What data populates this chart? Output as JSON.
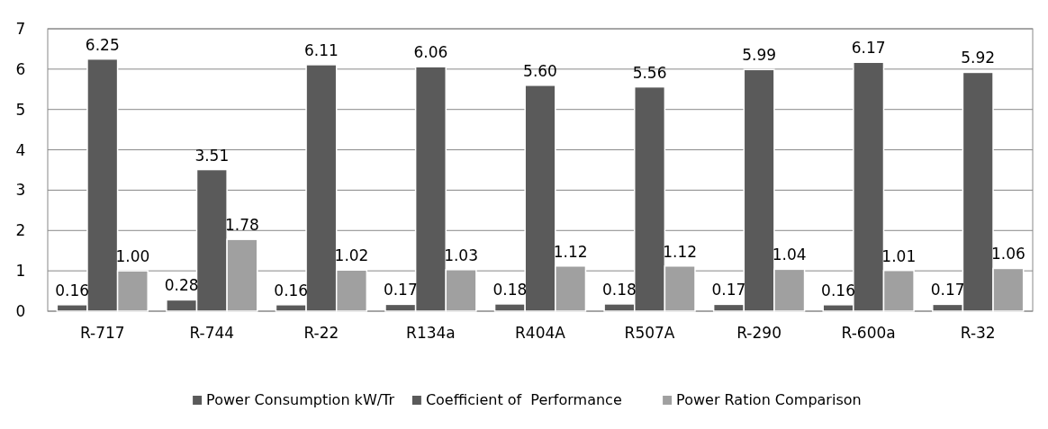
{
  "chart_data": {
    "type": "bar",
    "categories": [
      "R-717",
      "R-744",
      "R-22",
      "R134a",
      "R404A",
      "R507A",
      "R-290",
      "R-600a",
      "R-32"
    ],
    "series": [
      {
        "name": "Power Consumption kW/Tr",
        "color": "#5a5a5a",
        "values": [
          0.16,
          0.28,
          0.16,
          0.17,
          0.18,
          0.18,
          0.17,
          0.16,
          0.17
        ]
      },
      {
        "name": "Coefficient of  Performance",
        "color": "#5a5a5a",
        "values": [
          6.25,
          3.51,
          6.11,
          6.06,
          5.6,
          5.56,
          5.99,
          6.17,
          5.92
        ]
      },
      {
        "name": "Power Ration Comparison",
        "color": "#a0a0a0",
        "values": [
          1.0,
          1.78,
          1.02,
          1.03,
          1.12,
          1.12,
          1.04,
          1.01,
          1.06
        ]
      }
    ],
    "value_labels": [
      [
        "0.16",
        "0.28",
        "0.16",
        "0.17",
        "0.18",
        "0.18",
        "0.17",
        "0.16",
        "0.17"
      ],
      [
        "6.25",
        "3.51",
        "6.11",
        "6.06",
        "5.60",
        "5.56",
        "5.99",
        "6.17",
        "5.92"
      ],
      [
        "1.00",
        "1.78",
        "1.02",
        "1.03",
        "1.12",
        "1.12",
        "1.04",
        "1.01",
        "1.06"
      ]
    ],
    "ylim": [
      0,
      7
    ],
    "yticks": [
      0,
      1,
      2,
      3,
      4,
      5,
      6,
      7
    ],
    "grid": "y",
    "legend": "bottom"
  }
}
